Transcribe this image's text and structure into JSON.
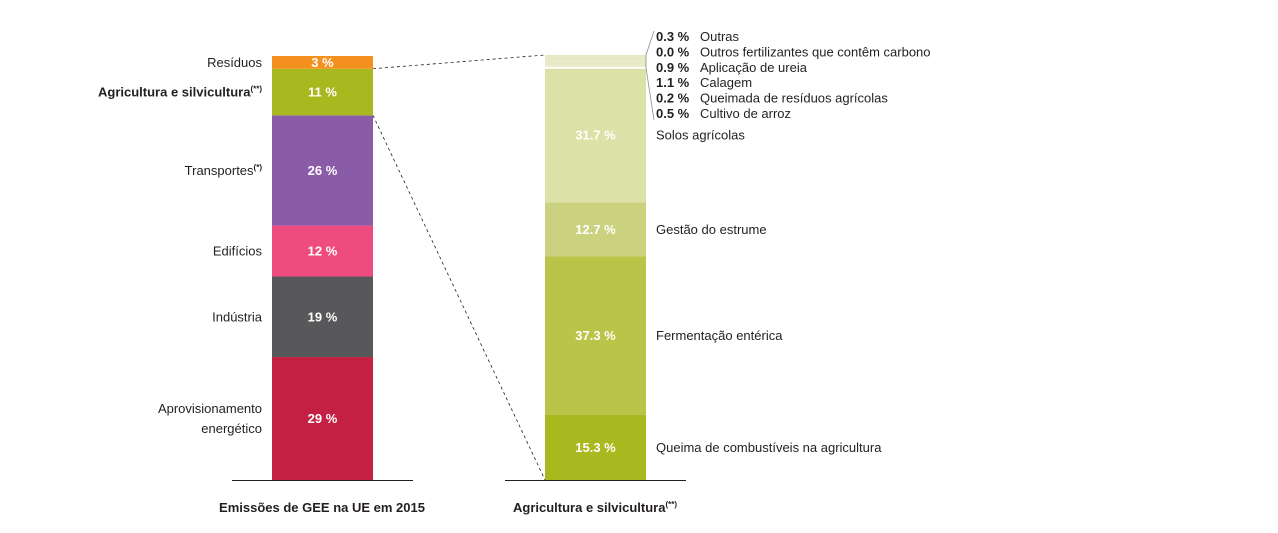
{
  "chart_data": [
    {
      "type": "bar",
      "stacked": true,
      "xlabel": "Emissões de GEE na UE em 2015",
      "unit": "%",
      "segments": [
        {
          "name": "Aprovisionamento energético",
          "name_lines": [
            "Aprovisionamento",
            "energético"
          ],
          "value": 29,
          "label": "29 %",
          "color": "#c32043"
        },
        {
          "name": "Indústria",
          "name_lines": [
            "Indústria"
          ],
          "value": 19,
          "label": "19 %",
          "color": "#58585a"
        },
        {
          "name": "Edifícios",
          "name_lines": [
            "Edifícios"
          ],
          "value": 12,
          "label": "12 %",
          "color": "#ee4c7e"
        },
        {
          "name": "Transportes",
          "name_lines": [
            "Transportes"
          ],
          "sup": "(*)",
          "value": 26,
          "label": "26 %",
          "color": "#8a5ca7"
        },
        {
          "name": "Agricultura e silvicultura",
          "name_lines": [
            "Agricultura e silvicultura"
          ],
          "sup": "(**)",
          "bold": true,
          "value": 11,
          "label": "11 %",
          "color": "#a8b81f"
        },
        {
          "name": "Resíduos",
          "name_lines": [
            "Resíduos"
          ],
          "value": 3,
          "label": "3 %",
          "color": "#f4901e"
        }
      ]
    },
    {
      "type": "bar",
      "stacked": true,
      "xlabel": "Agricultura e silvicultura",
      "xlabel_sup": "(**)",
      "unit": "%",
      "segments": [
        {
          "name": "Queima de combustíveis na agricultura",
          "value": 15.3,
          "label": "15.3 %",
          "color": "#a8b81f"
        },
        {
          "name": "Fermentação entérica",
          "value": 37.3,
          "label": "37.3 %",
          "color": "#bac448"
        },
        {
          "name": "Gestão do estrume",
          "value": 12.7,
          "label": "12.7 %",
          "color": "#cbd27f"
        },
        {
          "name": "Solos agrícolas",
          "value": 31.7,
          "label": "31.7 %",
          "color": "#dce1a7"
        },
        {
          "name": "Cultivo de arroz",
          "value": 0.5,
          "label": "0.5 %",
          "color": "#e6eac4"
        },
        {
          "name": "Queimada de resíduos agrícolas",
          "value": 0.2,
          "label": "0.2 %",
          "color": "#e6eac4"
        },
        {
          "name": "Calagem",
          "value": 1.1,
          "label": "1.1 %",
          "color": "#e6eac4"
        },
        {
          "name": "Aplicação de ureia",
          "value": 0.9,
          "label": "0.9 %",
          "color": "#e6eac4"
        },
        {
          "name": "Outros fertilizantes que contêm carbono",
          "value": 0.0,
          "label": "0.0 %",
          "color": "#e6eac4"
        },
        {
          "name": "Outras",
          "value": 0.3,
          "label": "0.3 %",
          "color": "#e6eac4"
        }
      ],
      "small_group_color": "#e6eac4"
    }
  ]
}
